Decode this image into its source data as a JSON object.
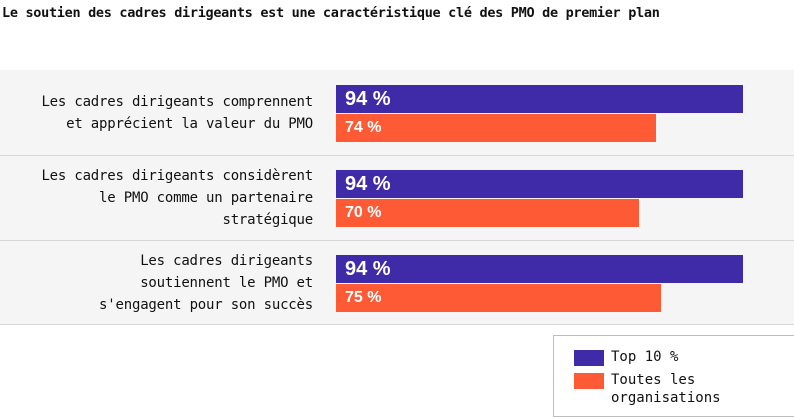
{
  "title": "Le soutien des cadres dirigeants est une caractéristique clé des PMO de premier plan",
  "colors": {
    "top": "#3f2aa8",
    "all": "#ff5a36",
    "panel": "#f5f5f5"
  },
  "legend": {
    "top": "Top 10 %",
    "all": "Toutes les organisations"
  },
  "chart_data": {
    "type": "bar",
    "orientation": "horizontal",
    "title": "Le soutien des cadres dirigeants est une caractéristique clé des PMO de premier plan",
    "categories": [
      "Les cadres dirigeants comprennent et apprécient la valeur du PMO",
      "Les cadres dirigeants considèrent le PMO comme un partenaire stratégique",
      "Les cadres dirigeants soutiennent le PMO et s'engagent pour son succès"
    ],
    "category_lines": [
      [
        "Les cadres dirigeants comprennent",
        "et apprécient la valeur du PMO"
      ],
      [
        "Les cadres dirigeants considèrent",
        "le PMO comme un partenaire",
        "stratégique"
      ],
      [
        "Les cadres dirigeants",
        "soutiennent le PMO et",
        "s'engagent pour son succès"
      ]
    ],
    "series": [
      {
        "name": "Top 10 %",
        "values": [
          94,
          94,
          94
        ],
        "labels": [
          "94 %",
          "94 %",
          "94 %"
        ]
      },
      {
        "name": "Toutes les organisations",
        "values": [
          74,
          70,
          75
        ],
        "labels": [
          "74 %",
          "70 %",
          "75 %"
        ]
      }
    ],
    "xlim": [
      0,
      100
    ],
    "legend_position": "bottom-right"
  }
}
